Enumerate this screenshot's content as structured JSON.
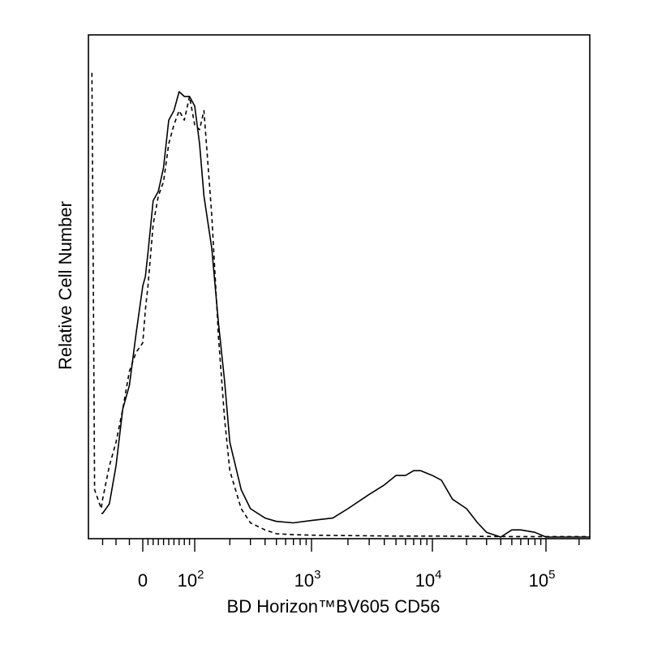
{
  "chart_data": {
    "type": "line",
    "title": "",
    "xlabel": "BD Horizon™BV605 CD56",
    "ylabel": "Relative Cell Number",
    "x_scale": "biexponential",
    "xlim": [
      -40,
      250000
    ],
    "ylim": [
      0,
      1
    ],
    "grid": false,
    "legend": "none",
    "x_ticks": [
      {
        "base": "0",
        "exp": "",
        "value": 0
      },
      {
        "base": "10",
        "exp": "2",
        "value": 100
      },
      {
        "base": "10",
        "exp": "3",
        "value": 1000
      },
      {
        "base": "10",
        "exp": "4",
        "value": 10000
      },
      {
        "base": "10",
        "exp": "5",
        "value": 100000
      }
    ],
    "series": [
      {
        "style": "solid",
        "color": "#000000",
        "x": [
          -31,
          -30,
          -25,
          -20,
          -15,
          -10,
          -5,
          0,
          5,
          10,
          20,
          30,
          40,
          50,
          60,
          70,
          80,
          90,
          100,
          110,
          120,
          140,
          160,
          180,
          200,
          250,
          300,
          400,
          500,
          700,
          1000,
          1500,
          2000,
          3000,
          4000,
          5000,
          6000,
          7000,
          8000,
          10000,
          12000,
          15000,
          20000,
          25000,
          30000,
          40000,
          50000,
          60000,
          80000,
          100000,
          150000,
          250000
        ],
        "y": [
          0.05,
          0.05,
          0.07,
          0.15,
          0.27,
          0.32,
          0.43,
          0.53,
          0.55,
          0.6,
          0.71,
          0.73,
          0.78,
          0.88,
          0.9,
          0.94,
          0.93,
          0.93,
          0.91,
          0.83,
          0.72,
          0.61,
          0.45,
          0.33,
          0.2,
          0.1,
          0.06,
          0.04,
          0.033,
          0.03,
          0.035,
          0.04,
          0.06,
          0.09,
          0.11,
          0.13,
          0.13,
          0.14,
          0.14,
          0.13,
          0.12,
          0.08,
          0.06,
          0.03,
          0.01,
          0.0,
          0.015,
          0.015,
          0.01,
          0.0,
          0.0,
          0.0
        ]
      },
      {
        "style": "dashed",
        "color": "#000000",
        "x": [
          -38,
          -37,
          -36,
          -31,
          -30,
          -25,
          -20,
          -15,
          -10,
          -5,
          0,
          5,
          10,
          20,
          30,
          40,
          50,
          60,
          70,
          80,
          90,
          100,
          110,
          120,
          140,
          160,
          180,
          200,
          250,
          300,
          400,
          500,
          700,
          1000,
          2000,
          5000,
          10000,
          50000,
          250000
        ],
        "y": [
          0.98,
          0.55,
          0.1,
          0.06,
          0.08,
          0.15,
          0.2,
          0.27,
          0.35,
          0.39,
          0.41,
          0.48,
          0.53,
          0.66,
          0.72,
          0.75,
          0.83,
          0.87,
          0.9,
          0.88,
          0.93,
          0.87,
          0.86,
          0.9,
          0.68,
          0.42,
          0.25,
          0.14,
          0.06,
          0.03,
          0.015,
          0.007,
          0.005,
          0.004,
          0.003,
          0.002,
          0.002,
          0.001,
          0.001
        ]
      }
    ]
  }
}
